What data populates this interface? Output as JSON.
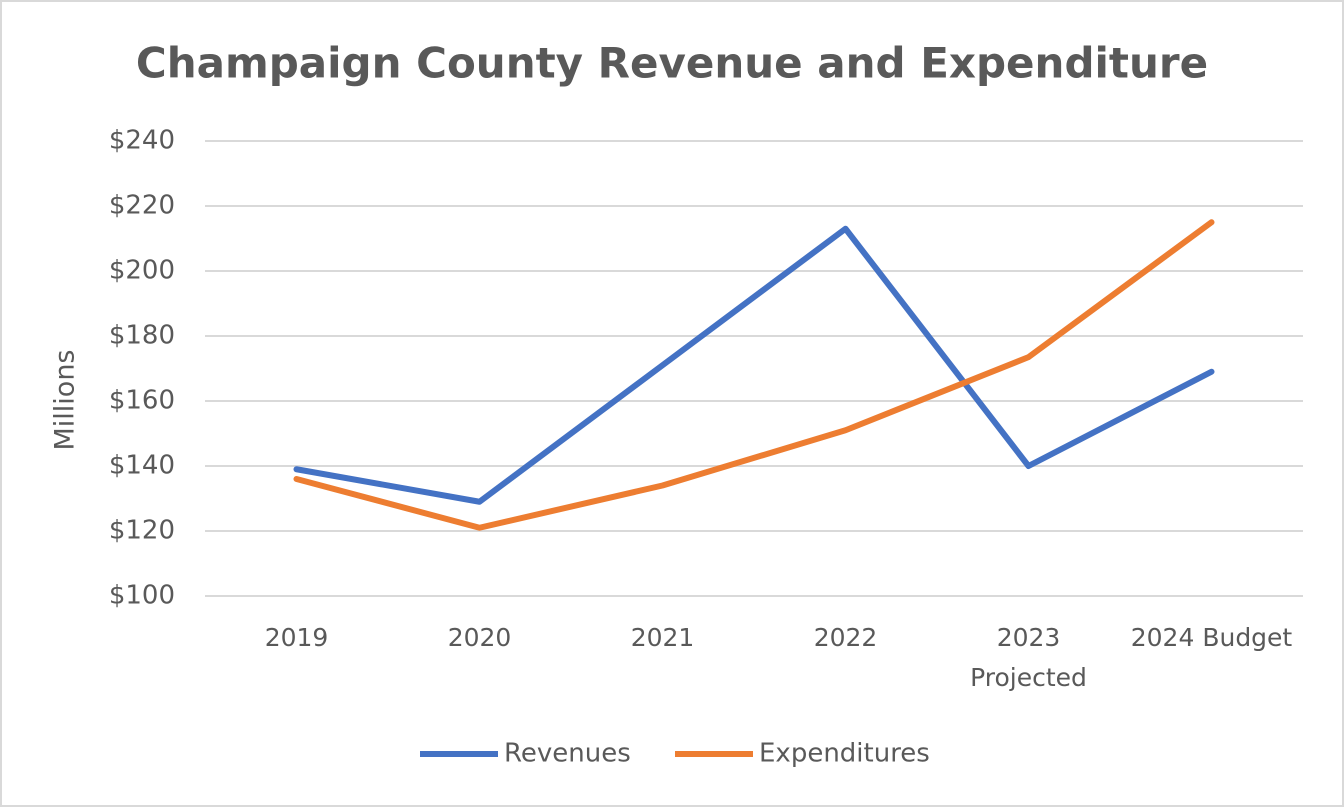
{
  "chart_data": {
    "type": "line",
    "title": "Champaign County Revenue and Expenditure",
    "y_label": "Millions",
    "categories": [
      "2019",
      "2020",
      "2021",
      "2022",
      "2023\nProjected",
      "2024 Budget"
    ],
    "series": [
      {
        "name": "Revenues",
        "color": "#4472c4",
        "values": [
          139,
          129,
          171,
          213,
          140,
          169
        ]
      },
      {
        "name": "Expenditures",
        "color": "#ed7d31",
        "values": [
          136,
          121,
          134,
          151,
          173.5,
          215
        ]
      }
    ],
    "ylim": [
      100,
      240
    ],
    "yticks": [
      {
        "value": 100,
        "label": "$100"
      },
      {
        "value": 120,
        "label": "$120"
      },
      {
        "value": 140,
        "label": "$140"
      },
      {
        "value": 160,
        "label": "$160"
      },
      {
        "value": 180,
        "label": "$180"
      },
      {
        "value": 200,
        "label": "$200"
      },
      {
        "value": 220,
        "label": "$220"
      },
      {
        "value": 240,
        "label": "$240"
      }
    ],
    "grid": true,
    "legend": "bottom"
  }
}
